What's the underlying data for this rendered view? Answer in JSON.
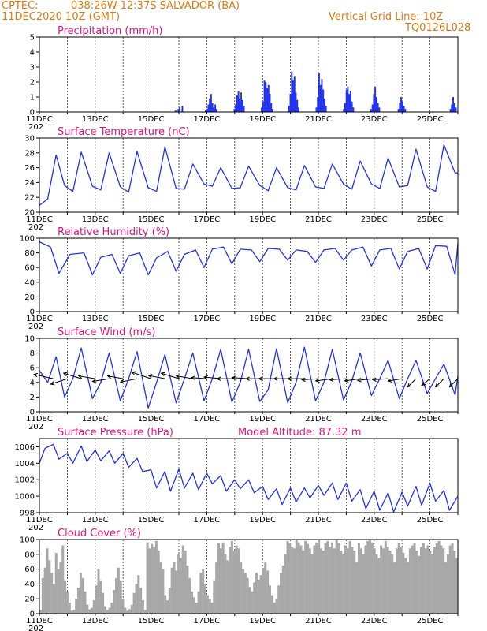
{
  "header": {
    "source": "CPTEC:",
    "location": "038:26W-12:37S  SALVADOR (BA)",
    "date": "11DEC2020 10Z (GMT)",
    "grid_note": "Vertical Grid Line: 10Z",
    "code": "TQ0126L028",
    "year_fragment": "202"
  },
  "colors": {
    "header": "#e07a10",
    "panel_title": "#e0147a",
    "line": "#2233ee",
    "cloud": "#a8a8a8",
    "arrow": "#000000"
  },
  "chart_data": [
    {
      "type": "bar",
      "title": "Precipitation (mm/h)",
      "ylim": [
        0,
        5
      ],
      "yticks": [
        0,
        1,
        2,
        3,
        4,
        5
      ],
      "x_start_day": 11,
      "xticks": [
        "11DEC",
        "13DEC",
        "15DEC",
        "17DEC",
        "19DEC",
        "21DEC",
        "23DEC",
        "25DEC"
      ],
      "values": [
        0,
        0,
        0,
        0,
        0,
        0,
        0,
        0,
        0,
        0,
        0,
        0,
        0,
        0,
        0,
        0,
        0,
        0,
        0,
        0,
        0,
        0,
        0,
        0,
        0,
        0,
        0,
        0,
        0,
        0,
        0,
        0,
        0,
        0,
        0,
        0,
        0,
        0,
        0,
        0,
        0,
        0,
        0,
        0,
        0,
        0,
        0,
        0,
        0,
        0,
        0,
        0,
        0,
        0,
        0,
        0,
        0,
        0,
        0,
        0,
        0,
        0,
        0,
        0,
        0,
        0,
        0,
        0,
        0,
        0,
        0,
        0,
        0,
        0,
        0,
        0,
        0,
        0,
        0,
        0,
        0,
        0,
        0,
        0,
        0,
        0,
        0,
        0,
        0,
        0,
        0,
        0,
        0,
        0,
        0,
        0,
        0,
        0,
        0,
        0.1,
        0,
        0.2,
        0.3,
        0,
        0.4,
        0,
        0,
        0,
        0,
        0,
        0,
        0,
        0,
        0,
        0,
        0,
        0,
        0,
        0,
        0,
        0,
        0.1,
        0.2,
        0.5,
        0.9,
        1.2,
        0.6,
        0.3,
        0.5,
        0.2,
        0,
        0,
        0,
        0,
        0,
        0,
        0,
        0,
        0,
        0,
        0,
        0,
        0.2,
        0.5,
        1.1,
        1.4,
        0.9,
        1.3,
        0.8,
        0.4,
        0,
        0,
        0,
        0,
        0,
        0,
        0,
        0,
        0,
        0,
        0,
        0,
        0.3,
        0.7,
        2.1,
        2.0,
        1.6,
        1.8,
        1.2,
        0.6,
        0.2,
        0,
        0,
        0,
        0,
        0,
        0,
        0,
        0,
        0,
        0,
        0,
        0.4,
        1.2,
        2.7,
        2.1,
        2.4,
        1.3,
        0.8,
        0.3,
        0,
        0,
        0,
        0,
        0,
        0,
        0,
        0,
        0,
        0,
        0,
        0,
        0.3,
        1.0,
        2.6,
        1.8,
        2.2,
        1.5,
        0.9,
        0.4,
        0,
        0,
        0,
        0,
        0,
        0,
        0,
        0,
        0,
        0,
        0,
        0,
        0.2,
        0.6,
        1.5,
        1.7,
        1.2,
        1.4,
        0.7,
        0.3,
        0,
        0,
        0,
        0,
        0,
        0,
        0,
        0,
        0,
        0,
        0,
        0,
        0.2,
        0.5,
        1.2,
        1.7,
        1.0,
        0.6,
        0.3,
        0,
        0,
        0,
        0,
        0,
        0,
        0,
        0,
        0,
        0,
        0,
        0,
        0,
        0.2,
        0.6,
        1.0,
        0.7,
        0.4,
        0.2,
        0,
        0,
        0,
        0,
        0,
        0,
        0,
        0,
        0,
        0,
        0,
        0,
        0,
        0,
        0,
        0,
        0,
        0,
        0,
        0,
        0,
        0,
        0,
        0,
        0,
        0,
        0,
        0,
        0,
        0,
        0,
        0,
        0.2,
        0.5,
        1.0,
        0.6,
        0.3,
        0
      ]
    },
    {
      "type": "line",
      "title": "Surface Temperature (nC)",
      "ylim": [
        20,
        30
      ],
      "yticks": [
        20,
        22,
        24,
        26,
        28,
        30
      ],
      "xticks": [
        "11DEC",
        "13DEC",
        "15DEC",
        "17DEC",
        "19DEC",
        "21DEC",
        "23DEC",
        "25DEC"
      ],
      "x_days": [
        11.0,
        11.3,
        11.6,
        11.9,
        12.2,
        12.5,
        12.9,
        13.2,
        13.5,
        13.9,
        14.2,
        14.5,
        14.9,
        15.2,
        15.5,
        15.9,
        16.2,
        16.5,
        16.9,
        17.2,
        17.5,
        17.9,
        18.2,
        18.5,
        18.9,
        19.2,
        19.5,
        19.9,
        20.2,
        20.5,
        20.9,
        21.2,
        21.5,
        21.9,
        22.2,
        22.5,
        22.9,
        23.2,
        23.5,
        23.9,
        24.2,
        24.5,
        24.9,
        25.2,
        25.5,
        25.9,
        26.0
      ],
      "values": [
        20.9,
        21.8,
        27.7,
        23.6,
        22.8,
        28.1,
        23.5,
        23.0,
        28.0,
        23.4,
        22.7,
        28.2,
        23.3,
        22.8,
        28.8,
        23.2,
        23.1,
        26.5,
        23.8,
        23.5,
        26.0,
        23.2,
        23.3,
        26.2,
        23.6,
        22.9,
        26.0,
        23.3,
        23.0,
        26.3,
        23.4,
        23.2,
        26.5,
        23.8,
        23.1,
        26.9,
        23.8,
        23.2,
        27.3,
        23.4,
        23.6,
        28.5,
        23.4,
        22.8,
        29.1,
        25.3,
        25.3
      ]
    },
    {
      "type": "line",
      "title": "Relative Humidity (%)",
      "ylim": [
        0,
        100
      ],
      "yticks": [
        0,
        20,
        40,
        60,
        80,
        100
      ],
      "xticks": [
        "11DEC",
        "13DEC",
        "15DEC",
        "17DEC",
        "19DEC",
        "21DEC",
        "23DEC",
        "25DEC"
      ],
      "x_days": [
        11.0,
        11.4,
        11.7,
        12.1,
        12.6,
        12.9,
        13.2,
        13.6,
        13.9,
        14.2,
        14.6,
        14.9,
        15.2,
        15.6,
        15.9,
        16.2,
        16.6,
        16.9,
        17.2,
        17.6,
        17.9,
        18.2,
        18.6,
        18.9,
        19.2,
        19.6,
        19.9,
        20.2,
        20.6,
        20.9,
        21.2,
        21.6,
        21.9,
        22.2,
        22.6,
        22.9,
        23.2,
        23.6,
        23.9,
        24.2,
        24.6,
        24.9,
        25.2,
        25.6,
        25.9,
        26.0
      ],
      "values": [
        95,
        88,
        52,
        78,
        80,
        50,
        74,
        78,
        52,
        76,
        80,
        50,
        73,
        82,
        55,
        78,
        84,
        60,
        85,
        88,
        65,
        85,
        84,
        68,
        86,
        85,
        70,
        84,
        82,
        67,
        84,
        86,
        70,
        84,
        88,
        62,
        84,
        86,
        58,
        82,
        86,
        58,
        90,
        89,
        50,
        93
      ]
    },
    {
      "type": "line",
      "title": "Surface Wind (m/s)",
      "ylim": [
        0,
        10
      ],
      "yticks": [
        0,
        2,
        4,
        6,
        8,
        10
      ],
      "xticks": [
        "11DEC",
        "13DEC",
        "15DEC",
        "17DEC",
        "19DEC",
        "21DEC",
        "23DEC",
        "25DEC"
      ],
      "x_days": [
        11.0,
        11.3,
        11.6,
        11.9,
        12.2,
        12.5,
        12.9,
        13.2,
        13.5,
        13.9,
        14.2,
        14.5,
        14.9,
        15.2,
        15.5,
        15.9,
        16.2,
        16.5,
        16.9,
        17.2,
        17.5,
        17.9,
        18.2,
        18.5,
        18.9,
        19.2,
        19.5,
        19.9,
        20.2,
        20.5,
        20.9,
        21.2,
        21.5,
        21.9,
        22.2,
        22.5,
        22.9,
        23.2,
        23.5,
        23.9,
        24.2,
        24.5,
        24.9,
        25.2,
        25.5,
        25.9,
        26.0
      ],
      "values": [
        5.6,
        4.0,
        7.5,
        2.0,
        4.5,
        8.7,
        1.8,
        4.0,
        8.0,
        1.5,
        4.5,
        8.2,
        0.5,
        4.0,
        7.8,
        1.2,
        4.5,
        8.0,
        1.5,
        4.5,
        8.5,
        1.3,
        4.0,
        8.5,
        1.4,
        3.0,
        8.6,
        1.2,
        4.0,
        8.8,
        1.5,
        4.0,
        8.5,
        1.6,
        4.2,
        8.0,
        2.2,
        4.5,
        7.0,
        1.8,
        4.5,
        7.0,
        2.5,
        4.5,
        6.5,
        2.3,
        4.8
      ],
      "vectors": [
        {
          "day": 11.5,
          "u": -3.5,
          "v": 0.8
        },
        {
          "day": 12.0,
          "u": -3.0,
          "v": -1.0
        },
        {
          "day": 12.5,
          "u": -3.2,
          "v": 1.0
        },
        {
          "day": 13.0,
          "u": -3.0,
          "v": 0.5
        },
        {
          "day": 13.5,
          "u": -3.0,
          "v": -0.5
        },
        {
          "day": 14.0,
          "u": -2.8,
          "v": 0.5
        },
        {
          "day": 14.5,
          "u": -3.0,
          "v": -0.6
        },
        {
          "day": 15.0,
          "u": -3.5,
          "v": 1.2
        },
        {
          "day": 15.5,
          "u": -3.0,
          "v": 0.6
        },
        {
          "day": 16.0,
          "u": -3.2,
          "v": 1.0
        },
        {
          "day": 16.5,
          "u": -3.0,
          "v": 0.5
        },
        {
          "day": 17.0,
          "u": -2.8,
          "v": 0.2
        },
        {
          "day": 17.5,
          "u": -3.0,
          "v": 0.3
        },
        {
          "day": 18.0,
          "u": -3.2,
          "v": 0.0
        },
        {
          "day": 18.5,
          "u": -3.0,
          "v": 0.2
        },
        {
          "day": 19.0,
          "u": -3.0,
          "v": 0.0
        },
        {
          "day": 19.5,
          "u": -3.2,
          "v": 0.0
        },
        {
          "day": 20.0,
          "u": -3.0,
          "v": 0.0
        },
        {
          "day": 20.5,
          "u": -3.0,
          "v": 0.0
        },
        {
          "day": 21.0,
          "u": -3.0,
          "v": -0.2
        },
        {
          "day": 21.5,
          "u": -3.0,
          "v": -0.4
        },
        {
          "day": 22.0,
          "u": -3.0,
          "v": -0.2
        },
        {
          "day": 22.5,
          "u": -2.8,
          "v": -0.4
        },
        {
          "day": 23.0,
          "u": -3.0,
          "v": -0.3
        },
        {
          "day": 23.5,
          "u": -2.8,
          "v": -0.2
        },
        {
          "day": 24.0,
          "u": -2.5,
          "v": -0.4
        },
        {
          "day": 24.5,
          "u": -1.5,
          "v": -1.5
        },
        {
          "day": 25.0,
          "u": -1.5,
          "v": -1.2
        },
        {
          "day": 25.5,
          "u": -1.5,
          "v": -1.5
        },
        {
          "day": 26.0,
          "u": -1.5,
          "v": -1.5
        }
      ]
    },
    {
      "type": "line",
      "title": "Surface Pressure (hPa)",
      "annotation": "Model Altitude: 87.32  m",
      "ylim": [
        998,
        1007
      ],
      "yticks": [
        998,
        1000,
        1002,
        1004,
        1006
      ],
      "xticks": [
        "11DEC",
        "13DEC",
        "15DEC",
        "17DEC",
        "19DEC",
        "21DEC",
        "23DEC",
        "25DEC"
      ],
      "x_days": [
        11.0,
        11.2,
        11.5,
        11.7,
        12.0,
        12.2,
        12.5,
        12.7,
        13.0,
        13.2,
        13.5,
        13.7,
        14.0,
        14.2,
        14.5,
        14.7,
        15.0,
        15.2,
        15.5,
        15.7,
        16.0,
        16.2,
        16.5,
        16.7,
        17.0,
        17.2,
        17.5,
        17.7,
        18.0,
        18.2,
        18.5,
        18.7,
        19.0,
        19.2,
        19.5,
        19.7,
        20.0,
        20.2,
        20.5,
        20.7,
        21.0,
        21.2,
        21.5,
        21.7,
        22.0,
        22.2,
        22.5,
        22.7,
        23.0,
        23.2,
        23.5,
        23.7,
        24.0,
        24.2,
        24.5,
        24.7,
        25.0,
        25.2,
        25.5,
        25.7,
        26.0
      ],
      "values": [
        1004.0,
        1005.8,
        1006.3,
        1004.5,
        1005.2,
        1004.0,
        1006.1,
        1004.2,
        1005.6,
        1004.3,
        1005.5,
        1004.0,
        1005.2,
        1003.5,
        1004.6,
        1003.0,
        1003.2,
        1001.0,
        1003.0,
        1000.6,
        1003.3,
        1001.0,
        1002.8,
        1000.8,
        1002.8,
        1001.5,
        1002.5,
        1000.6,
        1002.0,
        1000.9,
        1002.0,
        1000.4,
        1001.2,
        999.6,
        1000.9,
        999.0,
        1001.0,
        999.3,
        1001.0,
        999.8,
        1001.3,
        1000.1,
        1001.6,
        999.6,
        1001.6,
        999.4,
        1000.8,
        998.5,
        1000.6,
        998.3,
        1000.4,
        998.1,
        1000.5,
        998.8,
        1001.2,
        998.9,
        1001.6,
        999.4,
        1000.7,
        998.3,
        1000.0
      ]
    },
    {
      "type": "bar",
      "title": "Cloud Cover (%)",
      "ylim": [
        0,
        100
      ],
      "yticks": [
        0,
        20,
        40,
        60,
        80,
        100
      ],
      "xticks": [
        "11DEC",
        "13DEC",
        "15DEC",
        "17DEC",
        "19DEC",
        "21DEC",
        "23DEC",
        "25DEC"
      ],
      "values": [
        5,
        48,
        62,
        88,
        72,
        55,
        40,
        82,
        60,
        70,
        92,
        45,
        30,
        15,
        4,
        5,
        20,
        35,
        55,
        48,
        30,
        12,
        6,
        8,
        18,
        38,
        60,
        45,
        28,
        10,
        5,
        8,
        15,
        32,
        48,
        62,
        45,
        20,
        8,
        4,
        6,
        12,
        28,
        40,
        52,
        35,
        18,
        5,
        96,
        88,
        94,
        90,
        98,
        85,
        70,
        60,
        25,
        18,
        35,
        62,
        70,
        58,
        80,
        75,
        92,
        85,
        65,
        48,
        30,
        22,
        15,
        30,
        55,
        60,
        40,
        25,
        20,
        15,
        45,
        70,
        95,
        88,
        96,
        80,
        72,
        90,
        98,
        85,
        92,
        88,
        70,
        60,
        55,
        48,
        36,
        30,
        42,
        55,
        46,
        52,
        62,
        70,
        58,
        38,
        25,
        15,
        20,
        38,
        55,
        65,
        80,
        98,
        95,
        90,
        88,
        100,
        96,
        92,
        85,
        98,
        94,
        88,
        80,
        92,
        96,
        100,
        88,
        85,
        95,
        98,
        90,
        96,
        88,
        100,
        95,
        85,
        80,
        92,
        88,
        98,
        90,
        85,
        70,
        95,
        88,
        80,
        92,
        98,
        100,
        96,
        88,
        80,
        75,
        92,
        88,
        98,
        90,
        85,
        80,
        70,
        88,
        95,
        90,
        82,
        75,
        70,
        88,
        92,
        95,
        85,
        78,
        90,
        95,
        88,
        92,
        85,
        80,
        90,
        95,
        98,
        92,
        88,
        70,
        80,
        92,
        95,
        85,
        75
      ]
    }
  ]
}
